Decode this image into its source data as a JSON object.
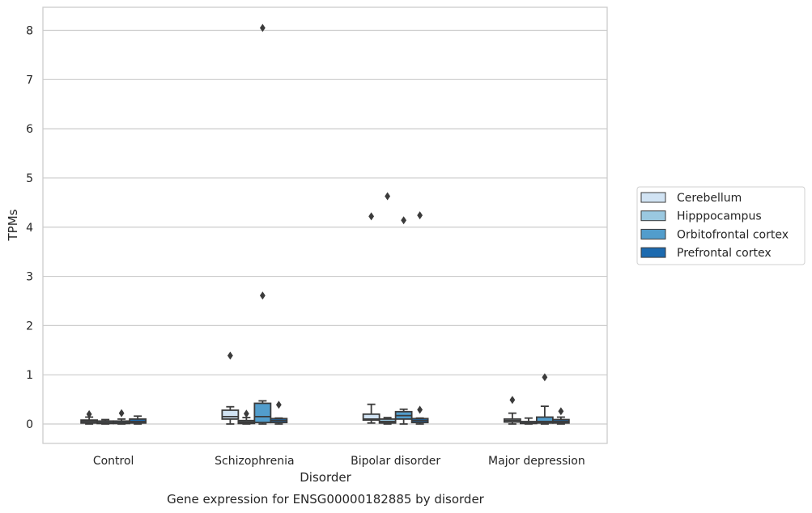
{
  "caption": "Gene expression for ENSG00000182885 by disorder",
  "chart_data": {
    "type": "box",
    "xlabel": "Disorder",
    "ylabel": "TPMs",
    "ylim": [
      -0.4,
      8.5
    ],
    "yticks": [
      0,
      1,
      2,
      3,
      4,
      5,
      6,
      7,
      8
    ],
    "grid": "horizontal",
    "legend_position": "right",
    "categories": [
      "Control",
      "Schizophrenia",
      "Bipolar disorder",
      "Major depression"
    ],
    "series": [
      {
        "name": "Cerebellum",
        "color": "#d1e3f3",
        "boxes": [
          {
            "whislo": 0.0,
            "q1": 0.02,
            "med": 0.05,
            "q3": 0.08,
            "whishi": 0.14,
            "fliers": [
              0.2
            ]
          },
          {
            "whislo": 0.0,
            "q1": 0.1,
            "med": 0.15,
            "q3": 0.28,
            "whishi": 0.35,
            "fliers": [
              1.39
            ]
          },
          {
            "whislo": 0.02,
            "q1": 0.08,
            "med": 0.1,
            "q3": 0.2,
            "whishi": 0.4,
            "fliers": [
              4.22
            ]
          },
          {
            "whislo": 0.0,
            "q1": 0.04,
            "med": 0.07,
            "q3": 0.1,
            "whishi": 0.22,
            "fliers": [
              0.49
            ]
          }
        ]
      },
      {
        "name": "Hipppocampus",
        "color": "#9ac8e0",
        "boxes": [
          {
            "whislo": 0.0,
            "q1": 0.01,
            "med": 0.03,
            "q3": 0.06,
            "whishi": 0.09,
            "fliers": []
          },
          {
            "whislo": 0.0,
            "q1": 0.01,
            "med": 0.04,
            "q3": 0.07,
            "whishi": 0.13,
            "fliers": [
              0.21
            ]
          },
          {
            "whislo": 0.0,
            "q1": 0.02,
            "med": 0.05,
            "q3": 0.1,
            "whishi": 0.13,
            "fliers": [
              4.63
            ]
          },
          {
            "whislo": 0.0,
            "q1": 0.01,
            "med": 0.02,
            "q3": 0.05,
            "whishi": 0.12,
            "fliers": []
          }
        ]
      },
      {
        "name": "Orbitofrontal cortex",
        "color": "#529dcc",
        "boxes": [
          {
            "whislo": 0.0,
            "q1": 0.01,
            "med": 0.03,
            "q3": 0.06,
            "whishi": 0.1,
            "fliers": [
              0.22
            ]
          },
          {
            "whislo": 0.0,
            "q1": 0.03,
            "med": 0.15,
            "q3": 0.42,
            "whishi": 0.47,
            "fliers": [
              2.61,
              8.05
            ]
          },
          {
            "whislo": 0.0,
            "q1": 0.1,
            "med": 0.17,
            "q3": 0.25,
            "whishi": 0.3,
            "fliers": [
              4.14
            ]
          },
          {
            "whislo": 0.0,
            "q1": 0.02,
            "med": 0.05,
            "q3": 0.14,
            "whishi": 0.36,
            "fliers": [
              0.95
            ]
          }
        ]
      },
      {
        "name": "Prefrontal cortex",
        "color": "#1c6aaf",
        "boxes": [
          {
            "whislo": 0.0,
            "q1": 0.02,
            "med": 0.05,
            "q3": 0.1,
            "whishi": 0.16,
            "fliers": []
          },
          {
            "whislo": 0.0,
            "q1": 0.03,
            "med": 0.07,
            "q3": 0.11,
            "whishi": 0.12,
            "fliers": [
              0.39
            ]
          },
          {
            "whislo": 0.0,
            "q1": 0.03,
            "med": 0.07,
            "q3": 0.11,
            "whishi": 0.12,
            "fliers": [
              0.29,
              4.24
            ]
          },
          {
            "whislo": 0.0,
            "q1": 0.02,
            "med": 0.05,
            "q3": 0.09,
            "whishi": 0.14,
            "fliers": [
              0.26
            ]
          }
        ]
      }
    ]
  }
}
